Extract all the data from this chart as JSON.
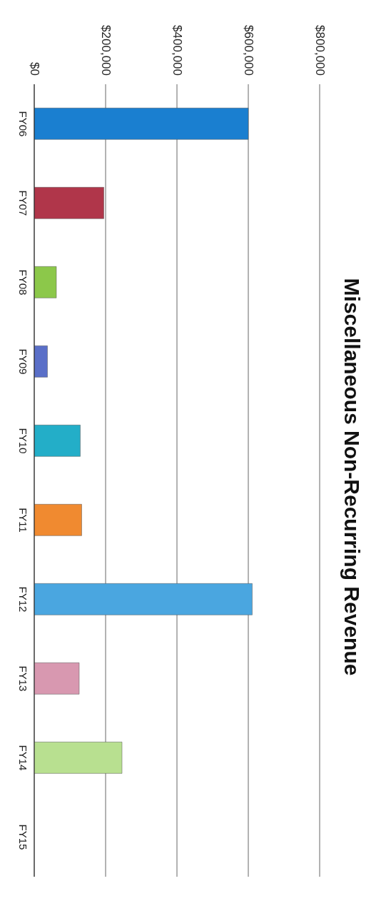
{
  "chart_data": {
    "type": "bar",
    "orientation": "horizontal",
    "title": "Miscellaneous Non-Recurring Revenue",
    "categories": [
      "FY06",
      "FY07",
      "FY08",
      "FY09",
      "FY10",
      "FY11",
      "FY12",
      "FY13",
      "FY14",
      "FY15"
    ],
    "values": [
      600000,
      195000,
      62000,
      37000,
      129000,
      133000,
      611000,
      126000,
      246000,
      null
    ],
    "colors": [
      "#1a7fd0",
      "#b0364a",
      "#8cc84a",
      "#5a6fc8",
      "#23aec8",
      "#f08a30",
      "#4aa6e0",
      "#d898b0",
      "#b8e090",
      "#cccccc"
    ],
    "xlim": [
      0,
      800000
    ],
    "xticks": [
      {
        "value": 0,
        "label": "$0"
      },
      {
        "value": 200000,
        "label": "$200,000"
      },
      {
        "value": 400000,
        "label": "$400,000"
      },
      {
        "value": 600000,
        "label": "$600,000"
      },
      {
        "value": 800000,
        "label": "$800,000"
      }
    ],
    "grid": "x",
    "legend": false
  }
}
